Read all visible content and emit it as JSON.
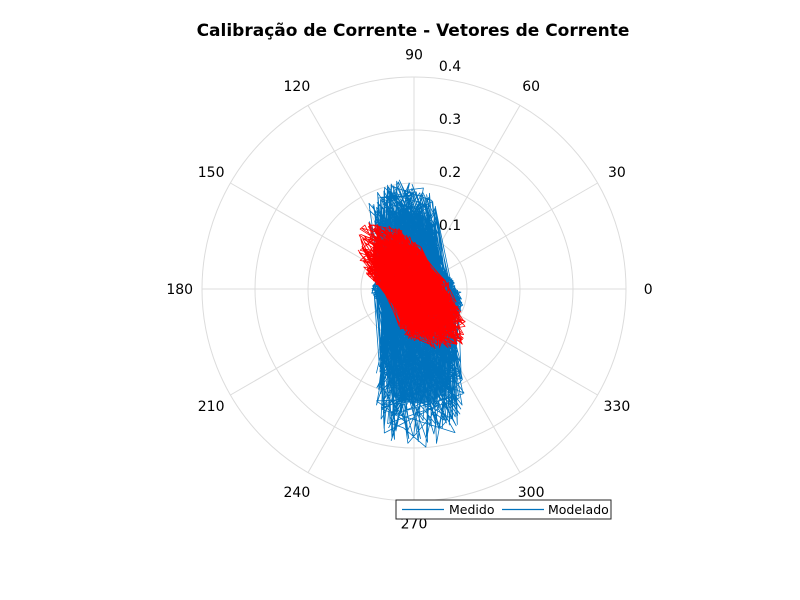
{
  "chart_data": {
    "type": "polar-line",
    "title": "Calibração de Corrente - Vetores de Corrente",
    "angle_ticks": [
      0,
      30,
      60,
      90,
      120,
      150,
      180,
      210,
      240,
      270,
      300,
      330
    ],
    "angle_tick_labels": [
      "0",
      "30",
      "60",
      "90",
      "120",
      "150",
      "180",
      "210",
      "240",
      "270",
      "300",
      "330"
    ],
    "r_ticks": [
      0.1,
      0.2,
      0.3,
      0.4
    ],
    "r_tick_labels": [
      "0.1",
      "0.2",
      "0.3",
      "0.4"
    ],
    "rlim": [
      0,
      0.4
    ],
    "grid": true,
    "legend": {
      "placement": "bottom-right",
      "entries": [
        "Medido",
        "Modelado"
      ]
    },
    "series": [
      {
        "name": "Medido",
        "color": "#0072BD",
        "envelope": [
          [
            0,
            0.09
          ],
          [
            10,
            0.08
          ],
          [
            20,
            0.07
          ],
          [
            30,
            0.06
          ],
          [
            40,
            0.06
          ],
          [
            50,
            0.07
          ],
          [
            60,
            0.09
          ],
          [
            70,
            0.13
          ],
          [
            80,
            0.19
          ],
          [
            90,
            0.2
          ],
          [
            100,
            0.21
          ],
          [
            110,
            0.2
          ],
          [
            120,
            0.18
          ],
          [
            130,
            0.12
          ],
          [
            140,
            0.1
          ],
          [
            150,
            0.09
          ],
          [
            160,
            0.08
          ],
          [
            170,
            0.08
          ],
          [
            180,
            0.08
          ],
          [
            190,
            0.08
          ],
          [
            200,
            0.07
          ],
          [
            210,
            0.07
          ],
          [
            220,
            0.07
          ],
          [
            230,
            0.08
          ],
          [
            240,
            0.12
          ],
          [
            250,
            0.22
          ],
          [
            260,
            0.29
          ],
          [
            270,
            0.3
          ],
          [
            280,
            0.3
          ],
          [
            290,
            0.27
          ],
          [
            300,
            0.18
          ],
          [
            310,
            0.12
          ],
          [
            320,
            0.1
          ],
          [
            330,
            0.1
          ],
          [
            340,
            0.1
          ],
          [
            350,
            0.09
          ]
        ]
      },
      {
        "name": "Modelado",
        "color": "#FF0000",
        "envelope": [
          [
            0,
            0.05
          ],
          [
            10,
            0.07
          ],
          [
            20,
            0.06
          ],
          [
            30,
            0.05
          ],
          [
            40,
            0.05
          ],
          [
            50,
            0.05
          ],
          [
            60,
            0.06
          ],
          [
            70,
            0.06
          ],
          [
            80,
            0.08
          ],
          [
            90,
            0.09
          ],
          [
            100,
            0.11
          ],
          [
            110,
            0.13
          ],
          [
            120,
            0.15
          ],
          [
            130,
            0.16
          ],
          [
            140,
            0.14
          ],
          [
            150,
            0.12
          ],
          [
            160,
            0.1
          ],
          [
            170,
            0.08
          ],
          [
            180,
            0.06
          ],
          [
            190,
            0.05
          ],
          [
            200,
            0.05
          ],
          [
            210,
            0.05
          ],
          [
            220,
            0.05
          ],
          [
            230,
            0.05
          ],
          [
            240,
            0.06
          ],
          [
            250,
            0.08
          ],
          [
            260,
            0.09
          ],
          [
            270,
            0.1
          ],
          [
            280,
            0.11
          ],
          [
            290,
            0.12
          ],
          [
            300,
            0.13
          ],
          [
            310,
            0.14
          ],
          [
            320,
            0.13
          ],
          [
            330,
            0.11
          ],
          [
            340,
            0.09
          ],
          [
            350,
            0.07
          ]
        ]
      }
    ]
  }
}
